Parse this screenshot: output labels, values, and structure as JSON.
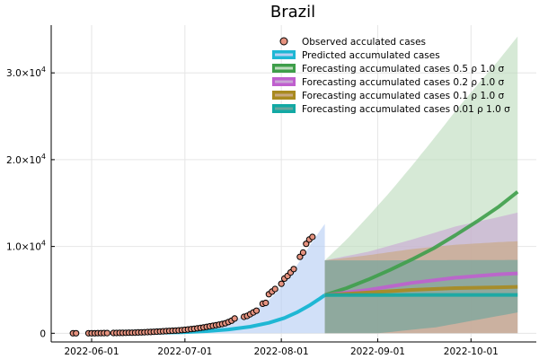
{
  "chart_data": {
    "type": "line",
    "title": "Brazil",
    "xlabel": "",
    "ylabel": "",
    "x_range": [
      "2022-05-19",
      "2022-10-22"
    ],
    "ylim": [
      -1000,
      35500
    ],
    "grid": true,
    "legend_position": "top-right",
    "x_ticks": [
      {
        "date": "2022-06-01",
        "label": "2022-06-01"
      },
      {
        "date": "2022-07-01",
        "label": "2022-07-01"
      },
      {
        "date": "2022-08-01",
        "label": "2022-08-01"
      },
      {
        "date": "2022-09-01",
        "label": "2022-09-01"
      },
      {
        "date": "2022-10-01",
        "label": "2022-10-01"
      }
    ],
    "y_ticks": [
      {
        "value": 0,
        "mantissa": "0",
        "exponent": ""
      },
      {
        "value": 10000,
        "mantissa": "1.0×10",
        "exponent": "4"
      },
      {
        "value": 20000,
        "mantissa": "2.0×10",
        "exponent": "4"
      },
      {
        "value": 30000,
        "mantissa": "3.0×10",
        "exponent": "4"
      }
    ],
    "series": [
      {
        "name": "Observed acculated cases",
        "kind": "scatter",
        "color": "#e5927f",
        "points": [
          [
            "2022-05-26",
            1
          ],
          [
            "2022-05-27",
            2
          ],
          [
            "2022-05-31",
            3
          ],
          [
            "2022-06-01",
            5
          ],
          [
            "2022-06-02",
            8
          ],
          [
            "2022-06-03",
            12
          ],
          [
            "2022-06-04",
            16
          ],
          [
            "2022-06-05",
            20
          ],
          [
            "2022-06-06",
            25
          ],
          [
            "2022-06-08",
            30
          ],
          [
            "2022-06-09",
            36
          ],
          [
            "2022-06-10",
            42
          ],
          [
            "2022-06-11",
            48
          ],
          [
            "2022-06-12",
            55
          ],
          [
            "2022-06-13",
            62
          ],
          [
            "2022-06-14",
            70
          ],
          [
            "2022-06-15",
            80
          ],
          [
            "2022-06-16",
            92
          ],
          [
            "2022-06-17",
            105
          ],
          [
            "2022-06-18",
            120
          ],
          [
            "2022-06-19",
            136
          ],
          [
            "2022-06-20",
            152
          ],
          [
            "2022-06-21",
            170
          ],
          [
            "2022-06-22",
            190
          ],
          [
            "2022-06-23",
            210
          ],
          [
            "2022-06-24",
            230
          ],
          [
            "2022-06-25",
            250
          ],
          [
            "2022-06-26",
            270
          ],
          [
            "2022-06-27",
            290
          ],
          [
            "2022-06-28",
            310
          ],
          [
            "2022-06-29",
            330
          ],
          [
            "2022-06-30",
            360
          ],
          [
            "2022-07-01",
            400
          ],
          [
            "2022-07-02",
            440
          ],
          [
            "2022-07-03",
            480
          ],
          [
            "2022-07-04",
            520
          ],
          [
            "2022-07-05",
            570
          ],
          [
            "2022-07-06",
            620
          ],
          [
            "2022-07-07",
            680
          ],
          [
            "2022-07-08",
            740
          ],
          [
            "2022-07-09",
            800
          ],
          [
            "2022-07-10",
            860
          ],
          [
            "2022-07-11",
            930
          ],
          [
            "2022-07-12",
            1000
          ],
          [
            "2022-07-13",
            1070
          ],
          [
            "2022-07-14",
            1150
          ],
          [
            "2022-07-15",
            1300
          ],
          [
            "2022-07-16",
            1450
          ],
          [
            "2022-07-17",
            1700
          ],
          [
            "2022-07-20",
            1900
          ],
          [
            "2022-07-21",
            2000
          ],
          [
            "2022-07-22",
            2200
          ],
          [
            "2022-07-23",
            2400
          ],
          [
            "2022-07-24",
            2600
          ],
          [
            "2022-07-26",
            3400
          ],
          [
            "2022-07-27",
            3500
          ],
          [
            "2022-07-28",
            4500
          ],
          [
            "2022-07-29",
            4800
          ],
          [
            "2022-07-30",
            5100
          ],
          [
            "2022-08-01",
            5700
          ],
          [
            "2022-08-02",
            6300
          ],
          [
            "2022-08-03",
            6600
          ],
          [
            "2022-08-04",
            7000
          ],
          [
            "2022-08-05",
            7400
          ],
          [
            "2022-08-07",
            8800
          ],
          [
            "2022-08-08",
            9300
          ],
          [
            "2022-08-09",
            10300
          ],
          [
            "2022-08-10",
            10800
          ],
          [
            "2022-08-11",
            11100
          ]
        ]
      },
      {
        "name": "Predicted accumulated cases",
        "kind": "line",
        "color": "#1fb7d4",
        "band_color": "#b9cff5",
        "points": [
          [
            "2022-06-09",
            0
          ],
          [
            "2022-06-20",
            40
          ],
          [
            "2022-06-30",
            110
          ],
          [
            "2022-07-08",
            240
          ],
          [
            "2022-07-15",
            440
          ],
          [
            "2022-07-22",
            760
          ],
          [
            "2022-07-28",
            1200
          ],
          [
            "2022-08-02",
            1760
          ],
          [
            "2022-08-06",
            2400
          ],
          [
            "2022-08-10",
            3200
          ],
          [
            "2022-08-13",
            3900
          ],
          [
            "2022-08-15",
            4400
          ]
        ],
        "band_upper": [
          [
            "2022-06-09",
            0
          ],
          [
            "2022-06-20",
            80
          ],
          [
            "2022-06-30",
            250
          ],
          [
            "2022-07-08",
            600
          ],
          [
            "2022-07-15",
            1200
          ],
          [
            "2022-07-22",
            2300
          ],
          [
            "2022-07-28",
            3800
          ],
          [
            "2022-08-02",
            5700
          ],
          [
            "2022-08-06",
            7800
          ],
          [
            "2022-08-10",
            10000
          ],
          [
            "2022-08-13",
            11600
          ],
          [
            "2022-08-15",
            12600
          ]
        ],
        "band_lower": [
          [
            "2022-06-09",
            0
          ],
          [
            "2022-06-30",
            0
          ],
          [
            "2022-07-15",
            0
          ],
          [
            "2022-08-01",
            0
          ],
          [
            "2022-08-15",
            0
          ]
        ]
      },
      {
        "name": "Forecasting accumulated cases 0.5 ρ 1.0 σ",
        "kind": "forecast",
        "color": "#3e9e4a",
        "band_color": "#bddcbd",
        "points": [
          [
            "2022-08-15",
            4400
          ],
          [
            "2022-08-22",
            5200
          ],
          [
            "2022-08-29",
            6200
          ],
          [
            "2022-09-05",
            7300
          ],
          [
            "2022-09-12",
            8500
          ],
          [
            "2022-09-19",
            9800
          ],
          [
            "2022-09-26",
            11300
          ],
          [
            "2022-10-03",
            12900
          ],
          [
            "2022-10-10",
            14600
          ],
          [
            "2022-10-16",
            16300
          ]
        ],
        "band_upper": [
          [
            "2022-08-15",
            8400
          ],
          [
            "2022-08-22",
            10800
          ],
          [
            "2022-08-29",
            13500
          ],
          [
            "2022-09-05",
            16300
          ],
          [
            "2022-09-12",
            19300
          ],
          [
            "2022-09-19",
            22400
          ],
          [
            "2022-09-26",
            25600
          ],
          [
            "2022-10-03",
            28600
          ],
          [
            "2022-10-10",
            31500
          ],
          [
            "2022-10-16",
            34200
          ]
        ],
        "band_lower": [
          [
            "2022-08-15",
            0
          ],
          [
            "2022-10-16",
            0
          ]
        ]
      },
      {
        "name": "Forecasting accumulated cases 0.2 ρ 1.0 σ",
        "kind": "forecast",
        "color": "#bf5fce",
        "band_color": "#c9a6d5",
        "points": [
          [
            "2022-08-15",
            4400
          ],
          [
            "2022-08-22",
            4700
          ],
          [
            "2022-08-29",
            5000
          ],
          [
            "2022-09-05",
            5400
          ],
          [
            "2022-09-12",
            5800
          ],
          [
            "2022-09-19",
            6100
          ],
          [
            "2022-09-26",
            6400
          ],
          [
            "2022-10-03",
            6600
          ],
          [
            "2022-10-10",
            6800
          ],
          [
            "2022-10-16",
            6900
          ]
        ],
        "band_upper": [
          [
            "2022-08-15",
            8400
          ],
          [
            "2022-08-29",
            9400
          ],
          [
            "2022-09-12",
            10800
          ],
          [
            "2022-09-26",
            12300
          ],
          [
            "2022-10-10",
            13400
          ],
          [
            "2022-10-16",
            13900
          ]
        ],
        "band_lower": [
          [
            "2022-08-15",
            0
          ],
          [
            "2022-08-29",
            0
          ],
          [
            "2022-09-12",
            0
          ],
          [
            "2022-10-16",
            0
          ]
        ]
      },
      {
        "name": "Forecasting accumulated cases 0.1 ρ 1.0 σ",
        "kind": "forecast",
        "color": "#a98a1f",
        "band_color": "#c9a880",
        "points": [
          [
            "2022-08-15",
            4400
          ],
          [
            "2022-08-29",
            4700
          ],
          [
            "2022-09-12",
            5000
          ],
          [
            "2022-09-26",
            5200
          ],
          [
            "2022-10-10",
            5300
          ],
          [
            "2022-10-16",
            5350
          ]
        ],
        "band_upper": [
          [
            "2022-08-15",
            8400
          ],
          [
            "2022-08-29",
            9000
          ],
          [
            "2022-09-12",
            9700
          ],
          [
            "2022-09-26",
            10200
          ],
          [
            "2022-10-10",
            10500
          ],
          [
            "2022-10-16",
            10600
          ]
        ],
        "band_lower": [
          [
            "2022-08-15",
            0
          ],
          [
            "2022-09-12",
            0
          ],
          [
            "2022-10-16",
            0
          ]
        ]
      },
      {
        "name": "Forecasting accumulated cases 0.01 ρ 1.0 σ",
        "kind": "forecast",
        "color": "#12a9a4",
        "band_color": "#6aa59d",
        "points": [
          [
            "2022-08-15",
            4400
          ],
          [
            "2022-09-01",
            4400
          ],
          [
            "2022-09-15",
            4420
          ],
          [
            "2022-10-01",
            4420
          ],
          [
            "2022-10-16",
            4420
          ]
        ],
        "band_upper": [
          [
            "2022-08-15",
            8400
          ],
          [
            "2022-09-01",
            8400
          ],
          [
            "2022-10-16",
            8450
          ]
        ],
        "band_lower": [
          [
            "2022-08-15",
            0
          ],
          [
            "2022-09-01",
            0
          ],
          [
            "2022-09-20",
            700
          ],
          [
            "2022-10-16",
            2400
          ]
        ]
      }
    ]
  }
}
